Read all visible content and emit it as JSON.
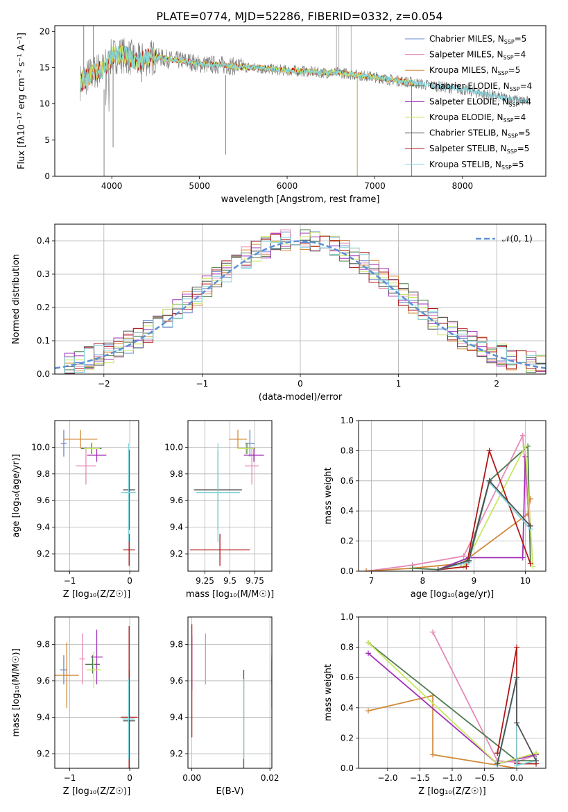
{
  "title": "PLATE=0774, MJD=52286, FIBERID=0332, z=0.054",
  "colors": [
    "#6688cc",
    "#e68ab8",
    "#d2893a",
    "#4e7a4e",
    "#a030b8",
    "#c8e860",
    "#505050",
    "#b01818",
    "#80d4dc"
  ],
  "chart_data": [
    {
      "id": "spectrum",
      "type": "line",
      "xlabel": "wavelength [Angstrom, rest frame]",
      "ylabel": "Flux [fλ10⁻¹⁷ erg cm⁻² s⁻¹ A⁻¹]",
      "xlim": [
        3350,
        8950
      ],
      "ylim": [
        0,
        20.8
      ],
      "xticks": [
        4000,
        5000,
        6000,
        7000,
        8000
      ],
      "yticks": [
        0,
        5,
        10,
        15,
        20
      ],
      "grid": false,
      "legend_position": "top-right",
      "legend": [
        "Chabrier MILES, N_SSP=5",
        "Salpeter MILES, N_SSP=4",
        "Kroupa MILES, N_SSP=5",
        "Chabrier ELODIE, N_SSP=4",
        "Salpeter ELODIE, N_SSP=4",
        "Kroupa ELODIE, N_SSP=4",
        "Chabrier STELIB, N_SSP=5",
        "Salpeter STELIB, N_SSP=5",
        "Kroupa STELIB, N_SSP=5"
      ],
      "continuum": {
        "x": [
          3640,
          3700,
          3800,
          3900,
          4000,
          4100,
          4200,
          4300,
          4400,
          4500,
          4600,
          4700,
          4800,
          4900,
          5000,
          5200,
          5400,
          5600,
          5800,
          6000,
          6200,
          6400,
          6600,
          6800,
          7000,
          7200,
          7400,
          7600,
          7800,
          8000,
          8200,
          8400,
          8600,
          8750
        ],
        "y": [
          13.0,
          13.5,
          14.5,
          14.8,
          16.5,
          16.8,
          16.5,
          15.8,
          16.3,
          16.5,
          16.3,
          16.0,
          16.0,
          15.8,
          15.5,
          15.4,
          15.2,
          15.0,
          14.8,
          14.6,
          14.5,
          14.3,
          14.3,
          14.0,
          13.7,
          13.3,
          13.0,
          12.6,
          12.3,
          12.0,
          11.5,
          11.0,
          10.5,
          10.3
        ]
      }
    },
    {
      "id": "residuals",
      "type": "line",
      "xlabel": "(data-model)/error",
      "ylabel": "Normed distribution",
      "xlim": [
        -2.5,
        2.5
      ],
      "ylim": [
        0,
        0.45
      ],
      "xticks": [
        -2,
        -1,
        0,
        1,
        2
      ],
      "yticks": [
        0.0,
        0.1,
        0.2,
        0.3,
        0.4
      ],
      "grid": true,
      "legend_position": "top-right",
      "legend": [
        "𝒩(0, 1)"
      ],
      "normal": {
        "mu": 0,
        "sigma": 1
      }
    },
    {
      "id": "age-vs-Z",
      "type": "scatter",
      "xlabel": "Z [log₁₀(Z/Z☉)]",
      "ylabel": "age  [log₁₀(age/yr)]",
      "xlim": [
        -1.25,
        0.15
      ],
      "ylim": [
        9.07,
        10.2
      ],
      "xticks": [
        -1,
        0
      ],
      "yticks": [
        9.2,
        9.4,
        9.6,
        9.8,
        10.0
      ],
      "grid": true,
      "points": [
        {
          "x": -1.1,
          "xerr": 0.05,
          "y": 10.03,
          "yerr": 0.1,
          "c": 0
        },
        {
          "x": -0.73,
          "xerr": 0.17,
          "y": 9.86,
          "yerr": 0.14,
          "c": 1
        },
        {
          "x": -0.82,
          "xerr": 0.28,
          "y": 10.06,
          "yerr": 0.07,
          "c": 2
        },
        {
          "x": -0.64,
          "xerr": 0.17,
          "y": 9.99,
          "yerr": 0.04,
          "c": 3
        },
        {
          "x": -0.55,
          "xerr": 0.16,
          "y": 9.94,
          "yerr": 0.05,
          "c": 4
        },
        {
          "x": -0.63,
          "xerr": 0.13,
          "y": 9.99,
          "yerr": 0.05,
          "c": 5
        },
        {
          "x": -0.01,
          "xerr": 0.1,
          "y": 9.68,
          "yerr": 0.3,
          "c": 6
        },
        {
          "x": -0.01,
          "xerr": 0.1,
          "y": 9.23,
          "yerr": 0.12,
          "c": 7
        },
        {
          "x": -0.02,
          "xerr": 0.12,
          "y": 9.66,
          "yerr": 0.37,
          "c": 8
        }
      ]
    },
    {
      "id": "age-vs-mass",
      "type": "scatter",
      "xlabel": "mass [log₁₀(M/M☉)]",
      "ylabel": "",
      "xlim": [
        9.08,
        9.92
      ],
      "ylim": [
        9.07,
        10.2
      ],
      "xticks": [
        9.25,
        9.5,
        9.75
      ],
      "yticks": [
        9.2,
        9.4,
        9.6,
        9.8,
        10.0
      ],
      "grid": true,
      "points": [
        {
          "x": 9.7,
          "xerr": 0.05,
          "y": 10.03,
          "yerr": 0.1,
          "c": 0
        },
        {
          "x": 9.72,
          "xerr": 0.07,
          "y": 9.86,
          "yerr": 0.14,
          "c": 1
        },
        {
          "x": 9.58,
          "xerr": 0.09,
          "y": 10.06,
          "yerr": 0.07,
          "c": 2
        },
        {
          "x": 9.67,
          "xerr": 0.08,
          "y": 9.99,
          "yerr": 0.04,
          "c": 3
        },
        {
          "x": 9.74,
          "xerr": 0.1,
          "y": 9.94,
          "yerr": 0.05,
          "c": 4
        },
        {
          "x": 9.66,
          "xerr": 0.08,
          "y": 9.99,
          "yerr": 0.05,
          "c": 5
        },
        {
          "x": 9.38,
          "xerr": 0.24,
          "y": 9.68,
          "yerr": 0.3,
          "c": 6
        },
        {
          "x": 9.4,
          "xerr": 0.3,
          "y": 9.23,
          "yerr": 0.12,
          "c": 7
        },
        {
          "x": 9.38,
          "xerr": 0.22,
          "y": 9.66,
          "yerr": 0.37,
          "c": 8
        }
      ]
    },
    {
      "id": "mass-weight-vs-age",
      "type": "line",
      "xlabel": "age  [log₁₀(age/yr)]",
      "ylabel": "mass weight",
      "xlim": [
        6.75,
        10.4
      ],
      "ylim": [
        0,
        1.0
      ],
      "xticks": [
        7,
        8,
        9,
        10
      ],
      "yticks": [
        0.0,
        0.2,
        0.4,
        0.6,
        0.8,
        1.0
      ],
      "grid": true,
      "series": [
        {
          "c": 1,
          "x": [
            6.9,
            7.8,
            8.8,
            9.95,
            10.08
          ],
          "y": [
            0.0,
            0.04,
            0.1,
            0.9,
            0.3
          ]
        },
        {
          "c": 2,
          "x": [
            6.9,
            7.8,
            8.75,
            10.05,
            10.1
          ],
          "y": [
            0.0,
            0.02,
            0.05,
            0.38,
            0.48
          ]
        },
        {
          "c": 3,
          "x": [
            7.8,
            8.3,
            8.9,
            9.3,
            10.05,
            10.1
          ],
          "y": [
            0.02,
            0.01,
            0.09,
            0.6,
            0.83,
            0.05
          ]
        },
        {
          "c": 4,
          "x": [
            8.3,
            8.9,
            9.95,
            10.0,
            10.1
          ],
          "y": [
            0.01,
            0.09,
            0.09,
            0.76,
            0.3
          ]
        },
        {
          "c": 5,
          "x": [
            8.3,
            8.8,
            10.0,
            10.15
          ],
          "y": [
            0.01,
            0.03,
            0.83,
            0.03
          ]
        },
        {
          "c": 7,
          "x": [
            8.3,
            8.85,
            9.3,
            10.1
          ],
          "y": [
            0.01,
            0.03,
            0.8,
            0.05
          ]
        },
        {
          "c": 8,
          "x": [
            8.3,
            8.9,
            9.3,
            10.1
          ],
          "y": [
            0.01,
            0.06,
            0.59,
            0.28
          ]
        },
        {
          "c": 6,
          "x": [
            8.3,
            8.9,
            9.3,
            10.1
          ],
          "y": [
            0.01,
            0.07,
            0.6,
            0.3
          ]
        }
      ]
    },
    {
      "id": "mass-vs-Z",
      "type": "scatter",
      "xlabel": "Z [log₁₀(Z/Z☉)]",
      "ylabel": "mass [log₁₀(M/M☉)]",
      "xlim": [
        -1.25,
        0.15
      ],
      "ylim": [
        9.12,
        9.95
      ],
      "xticks": [
        -1,
        0
      ],
      "yticks": [
        9.2,
        9.4,
        9.6,
        9.8
      ],
      "grid": true,
      "points": [
        {
          "x": -1.1,
          "xerr": 0.06,
          "y": 9.66,
          "yerr": 0.08,
          "c": 0
        },
        {
          "x": -0.79,
          "xerr": 0.05,
          "y": 9.72,
          "yerr": 0.14,
          "c": 1
        },
        {
          "x": -1.05,
          "xerr": 0.2,
          "y": 9.63,
          "yerr": 0.18,
          "c": 2
        },
        {
          "x": -0.62,
          "xerr": 0.12,
          "y": 9.69,
          "yerr": 0.05,
          "c": 3
        },
        {
          "x": -0.55,
          "xerr": 0.1,
          "y": 9.73,
          "yerr": 0.15,
          "c": 4
        },
        {
          "x": -0.6,
          "xerr": 0.12,
          "y": 9.66,
          "yerr": 0.1,
          "c": 5
        },
        {
          "x": -0.01,
          "xerr": 0.1,
          "y": 9.38,
          "yerr": 0.28,
          "c": 6
        },
        {
          "x": -0.01,
          "xerr": 0.14,
          "y": 9.4,
          "yerr": 0.5,
          "c": 7
        },
        {
          "x": -0.02,
          "xerr": 0.1,
          "y": 9.39,
          "yerr": 0.22,
          "c": 8
        }
      ]
    },
    {
      "id": "mass-vs-ebv",
      "type": "scatter",
      "xlabel": "E(B-V)",
      "ylabel": "",
      "xlim": [
        -0.001,
        0.0205
      ],
      "ylim": [
        9.12,
        9.95
      ],
      "xticks": [
        0.0,
        0.02
      ],
      "yticks": [
        9.2,
        9.4,
        9.6,
        9.8
      ],
      "grid": true,
      "points": [
        {
          "x": 0.0205,
          "y": 9.66,
          "yerr": 0.08,
          "c": 0
        },
        {
          "x": 0.0035,
          "y": 9.72,
          "yerr": 0.14,
          "c": 1
        },
        {
          "x": 0.0205,
          "y": 9.58,
          "yerr": 0.13,
          "c": 2
        },
        {
          "x": 0.0,
          "y": 9.7,
          "yerr": 0.15,
          "c": 4
        },
        {
          "x": 0.0,
          "y": 9.6,
          "yerr": 0.31,
          "c": 7
        },
        {
          "x": 0.0133,
          "y": 9.38,
          "yerr": 0.28,
          "c": 6
        },
        {
          "x": 0.0133,
          "y": 9.39,
          "yerr": 0.22,
          "c": 8
        }
      ]
    },
    {
      "id": "mass-weight-vs-Z",
      "type": "line",
      "xlabel": "Z [log₁₀(Z/Z☉)]",
      "ylabel": "mass weight",
      "xlim": [
        -2.45,
        0.45
      ],
      "ylim": [
        0,
        1.0
      ],
      "xticks": [
        -2.0,
        -1.5,
        -1.0,
        -0.5,
        0.0
      ],
      "yticks": [
        0.0,
        0.2,
        0.4,
        0.6,
        0.8,
        1.0
      ],
      "grid": true,
      "series": [
        {
          "c": 1,
          "x": [
            -1.3,
            -0.3,
            0.0,
            0.3
          ],
          "y": [
            0.9,
            0.05,
            0.04,
            0.09
          ]
        },
        {
          "c": 2,
          "x": [
            -2.3,
            -1.3,
            -1.3,
            0.0
          ],
          "y": [
            0.38,
            0.48,
            0.09,
            0.0
          ]
        },
        {
          "c": 3,
          "x": [
            -2.3,
            0.0,
            0.3
          ],
          "y": [
            0.83,
            0.05,
            0.05
          ]
        },
        {
          "c": 4,
          "x": [
            -2.3,
            -0.3,
            0.3
          ],
          "y": [
            0.76,
            0.03,
            0.09
          ]
        },
        {
          "c": 5,
          "x": [
            -2.3,
            -0.3,
            0.3
          ],
          "y": [
            0.83,
            0.03,
            0.1
          ]
        },
        {
          "c": 7,
          "x": [
            -0.3,
            0.0,
            0.0,
            0.3
          ],
          "y": [
            0.1,
            0.8,
            0.03,
            0.03
          ]
        },
        {
          "c": 8,
          "x": [
            -0.3,
            0.0,
            0.0,
            0.3
          ],
          "y": [
            0.02,
            0.59,
            0.02,
            0.05
          ]
        },
        {
          "c": 6,
          "x": [
            -0.3,
            0.0,
            0.0,
            0.3
          ],
          "y": [
            0.03,
            0.6,
            0.3,
            0.05
          ]
        }
      ]
    }
  ]
}
